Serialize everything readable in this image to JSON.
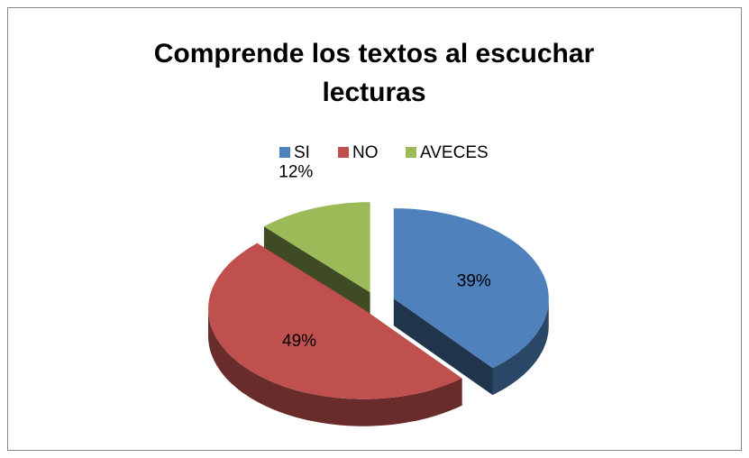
{
  "chart_data": {
    "type": "pie",
    "title": "Comprende  los textos al escuchar lecturas",
    "categories": [
      "SI",
      "NO",
      "AVECES"
    ],
    "values": [
      39,
      49,
      12
    ],
    "value_labels": [
      "39%",
      "49%",
      "12%"
    ],
    "colors": [
      "#4f81bd",
      "#c0504d",
      "#9bbb59"
    ],
    "legend": "top"
  }
}
